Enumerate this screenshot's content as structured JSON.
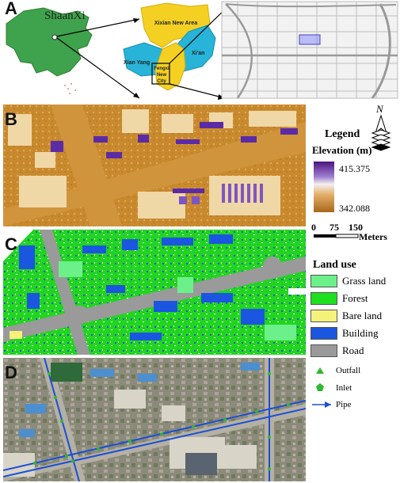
{
  "panels": {
    "a": "A",
    "b": "B",
    "c": "C",
    "d": "D"
  },
  "panel_a": {
    "province": "ShaanXi",
    "regions": [
      {
        "name": "Xixian New Area"
      },
      {
        "name": "Xian Yang"
      },
      {
        "name": "Xi'an"
      },
      {
        "name": "Fengxi New City"
      }
    ]
  },
  "legend_b": {
    "title": "Legend",
    "elevation_label": "Elevation (m)",
    "max": "415.375",
    "min": "342.088",
    "north": "N",
    "scale": {
      "ticks": [
        "0",
        "75",
        "150"
      ],
      "unit": "Meters"
    }
  },
  "legend_c": {
    "title": "Land use",
    "classes": [
      {
        "label": "Grass land",
        "color": "#6cf08a"
      },
      {
        "label": "Forest",
        "color": "#1ee01e"
      },
      {
        "label": "Bare land",
        "color": "#f5f27a"
      },
      {
        "label": "Building",
        "color": "#1a56e0"
      },
      {
        "label": "Road",
        "color": "#9a9a9a"
      }
    ]
  },
  "legend_d": {
    "items": [
      {
        "label": "Outfall",
        "symbol": "triangle",
        "color": "#2db82d"
      },
      {
        "label": "Inlet",
        "symbol": "pentagon",
        "color": "#2db82d"
      },
      {
        "label": "Pipe",
        "symbol": "arrow-line",
        "color": "#1a4fd6"
      }
    ]
  }
}
